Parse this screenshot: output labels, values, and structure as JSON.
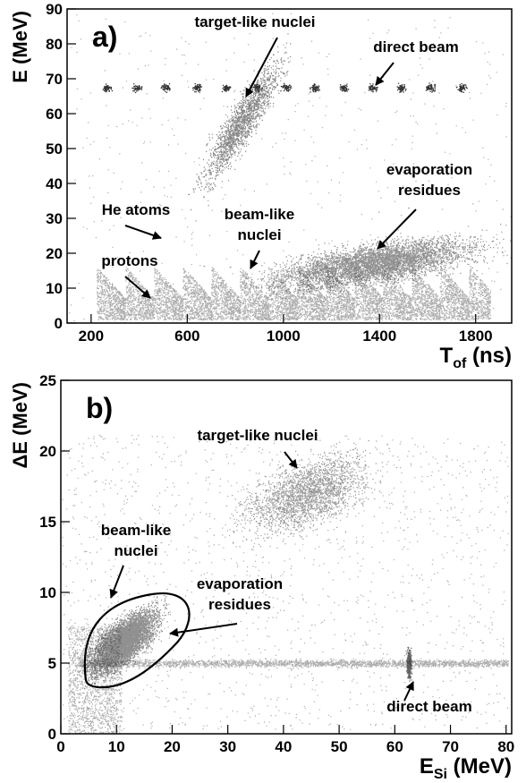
{
  "chart_data": [
    {
      "type": "scatter",
      "panel_label": "a)",
      "y_label": "E (MeV)",
      "x_label": [
        "T",
        "of",
        " (ns)"
      ],
      "xlim": [
        100,
        1950
      ],
      "ylim": [
        0,
        90
      ],
      "xticks": [
        200,
        600,
        1000,
        1400,
        1800
      ],
      "yticks": [
        0,
        10,
        20,
        30,
        40,
        50,
        60,
        70,
        80,
        90
      ],
      "direct_beam": {
        "x": [
          265,
          390,
          510,
          640,
          760,
          890,
          1010,
          1130,
          1250,
          1370,
          1490,
          1610,
          1740
        ],
        "y": [
          67.5,
          67.5,
          67.5,
          67.5,
          67.5,
          67.5,
          67.5,
          67.5,
          67.5,
          67.5,
          67.5,
          67.5,
          67.5
        ]
      },
      "clusters": [
        {
          "x": 830,
          "y": 58
        },
        {
          "x": 1380,
          "y": 17
        }
      ],
      "annotations": [
        [
          "target-like nuclei"
        ],
        [
          "direct beam"
        ],
        [
          "evaporation",
          "residues"
        ],
        [
          "beam-like",
          "nuclei"
        ],
        [
          "He atoms"
        ],
        [
          "protons"
        ]
      ]
    },
    {
      "type": "scatter",
      "panel_label": "b)",
      "y_label": "ΔE (MeV)",
      "x_label": [
        "E",
        "Si",
        " (MeV)"
      ],
      "xlim": [
        0,
        81
      ],
      "ylim": [
        0,
        25
      ],
      "xticks": [
        0,
        10,
        20,
        30,
        40,
        50,
        60,
        70,
        80
      ],
      "yticks": [
        0,
        5,
        10,
        15,
        20,
        25
      ],
      "clusters": [
        {
          "x": 11,
          "y": 6.5
        },
        {
          "x": 44,
          "y": 17
        },
        {
          "x": 62.5,
          "y": 5
        }
      ],
      "annotations": [
        [
          "target-like nuclei"
        ],
        [
          "beam-like",
          "nuclei"
        ],
        [
          "evaporation",
          "residues"
        ],
        [
          "direct beam"
        ]
      ]
    }
  ]
}
